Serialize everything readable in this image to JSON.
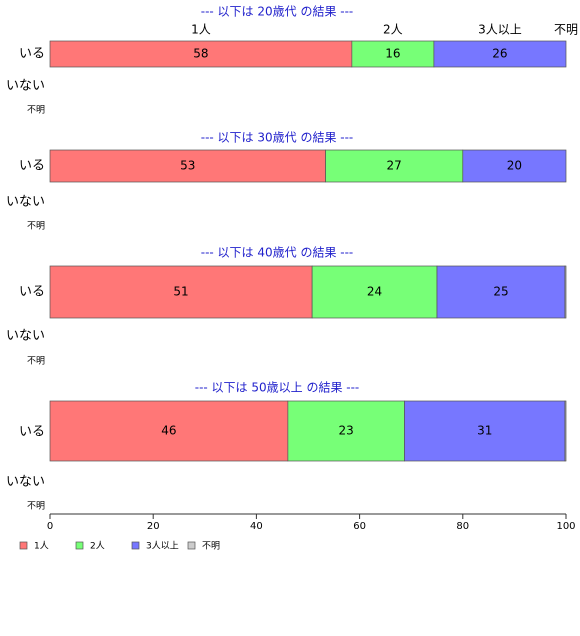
{
  "chart_data": {
    "type": "bar",
    "stacked": true,
    "legend": "bottom-left",
    "xlim": [
      0,
      100
    ],
    "xticks": [
      0,
      20,
      40,
      60,
      80,
      100
    ],
    "panels": [
      {
        "title": "--- 以下は 20歳代 の結果 ---",
        "categories": [
          "いる",
          "いない",
          "不明"
        ]
      },
      {
        "title": "--- 以下は 30歳代 の結果 ---",
        "categories": [
          "いる",
          "いない",
          "不明"
        ]
      },
      {
        "title": "--- 以下は 40歳代 の結果 ---",
        "categories": [
          "いる",
          "いない",
          "不明"
        ]
      },
      {
        "title": "--- 以下は 50歳以上 の結果 ---",
        "categories": [
          "いる",
          "いない",
          "不明"
        ]
      }
    ],
    "series": [
      {
        "name": "1人",
        "color": "#ff7777",
        "values": [
          58.5,
          53.4,
          50.8,
          46.1
        ],
        "value_labels": [
          "58",
          "53",
          "51",
          "46"
        ]
      },
      {
        "name": "2人",
        "color": "#77ff77",
        "values": [
          15.9,
          26.6,
          24.2,
          22.6
        ],
        "value_labels": [
          "16",
          "27",
          "24",
          "23"
        ]
      },
      {
        "name": "3人以上",
        "color": "#7777ff",
        "values": [
          25.6,
          20.0,
          24.8,
          31.1
        ],
        "value_labels": [
          "26",
          "20",
          "25",
          "31"
        ]
      },
      {
        "name": "不明",
        "color": "#cccccc",
        "values": [
          0,
          0,
          0.2,
          0.2
        ]
      }
    ]
  }
}
